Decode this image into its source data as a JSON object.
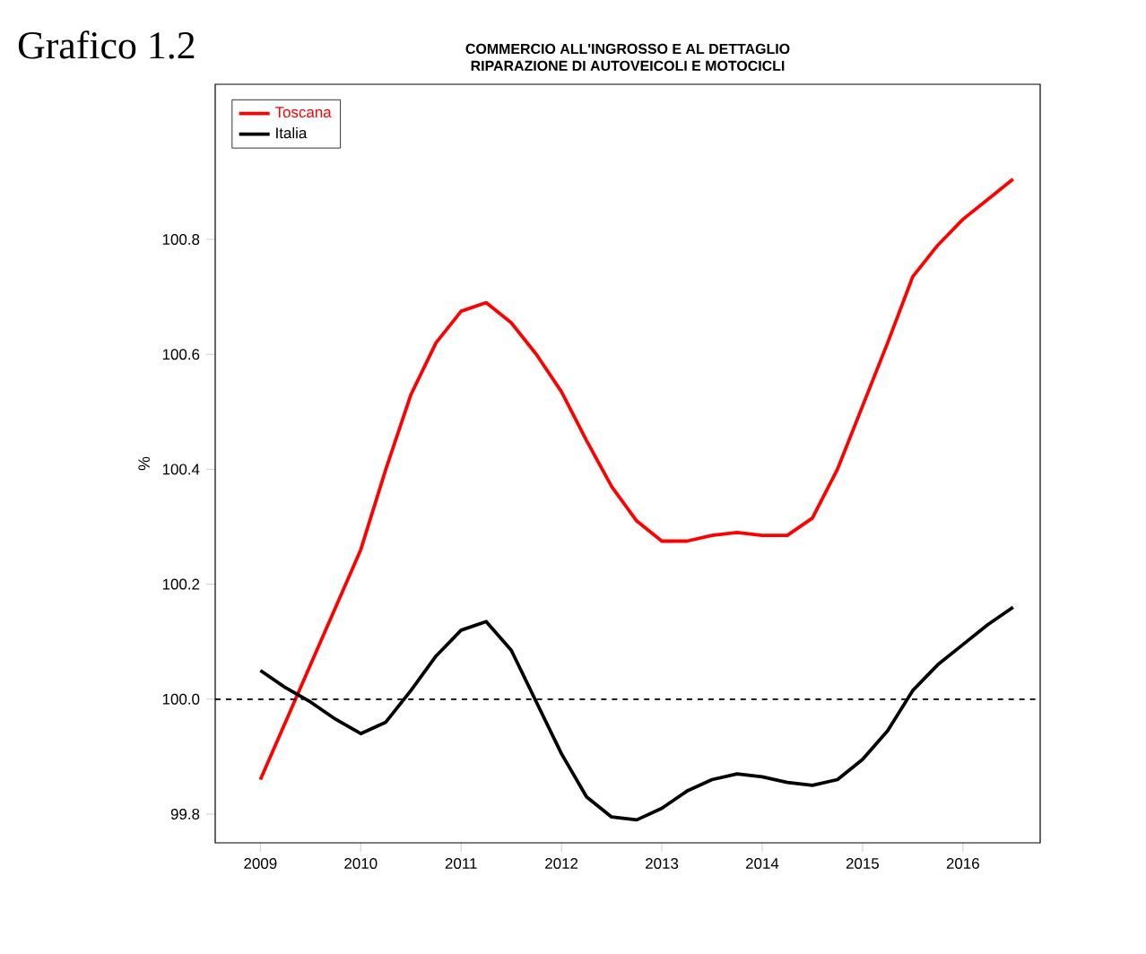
{
  "chart_data": {
    "type": "line",
    "title": "COMMERCIO ALL'INGROSSO E AL DETTAGLIO",
    "subtitle": "RIPARAZIONE DI AUTOVEICOLI E MOTOCICLI",
    "ylabel": "%",
    "annotations": [
      "Grafico 1.2"
    ],
    "x": [
      2009,
      2009.25,
      2009.5,
      2009.75,
      2010,
      2010.25,
      2010.5,
      2010.75,
      2011,
      2011.25,
      2011.5,
      2011.75,
      2012,
      2012.25,
      2012.5,
      2012.75,
      2013,
      2013.25,
      2013.5,
      2013.75,
      2014,
      2014.25,
      2014.5,
      2014.75,
      2015,
      2015.25,
      2015.5,
      2015.75,
      2016,
      2016.25,
      2016.5
    ],
    "series": [
      {
        "name": "Toscana",
        "color": "#ff0000",
        "values": [
          99.86,
          99.96,
          100.06,
          100.16,
          100.26,
          100.4,
          100.53,
          100.62,
          100.675,
          100.69,
          100.655,
          100.6,
          100.535,
          100.45,
          100.37,
          100.31,
          100.275,
          100.275,
          100.285,
          100.29,
          100.285,
          100.285,
          100.315,
          100.4,
          100.51,
          100.62,
          100.735,
          100.79,
          100.835,
          100.87,
          100.905
        ]
      },
      {
        "name": "Italia",
        "color": "#000000",
        "values": [
          100.05,
          100.02,
          99.995,
          99.965,
          99.94,
          99.96,
          100.015,
          100.075,
          100.12,
          100.135,
          100.085,
          99.995,
          99.905,
          99.83,
          99.795,
          99.79,
          99.81,
          99.84,
          99.86,
          99.87,
          99.865,
          99.855,
          99.85,
          99.86,
          99.895,
          99.945,
          100.015,
          100.06,
          100.095,
          100.13,
          100.16
        ]
      }
    ],
    "xlim": [
      2008.55,
      2016.77
    ],
    "ylim": [
      99.75,
      101.07
    ],
    "xticks": [
      2009,
      2010,
      2011,
      2012,
      2013,
      2014,
      2015,
      2016
    ],
    "yticks": [
      99.8,
      {
        "value": 100,
        "label": "100.0"
      },
      100.2,
      100.4,
      100.6,
      100.8
    ],
    "ref_lines": [
      {
        "axis": "y",
        "value": 100,
        "color": "#000000",
        "line_style": "dashed"
      }
    ],
    "legend": "top left",
    "line_style": "solid",
    "grid": false
  }
}
